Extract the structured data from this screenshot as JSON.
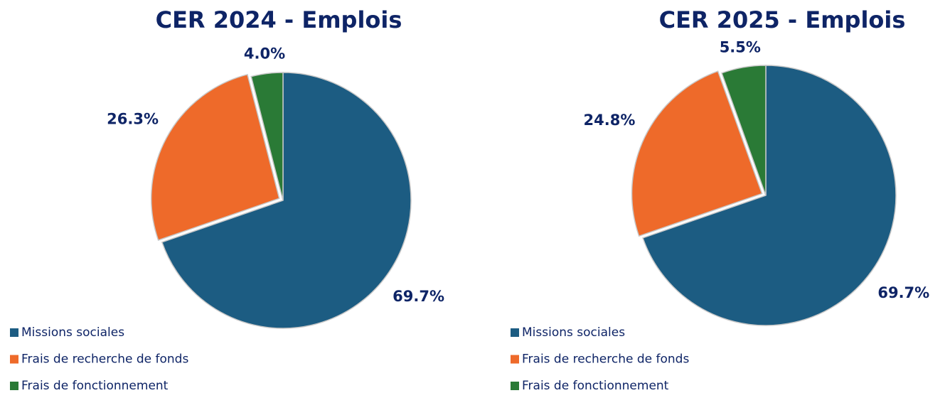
{
  "chart_data": [
    {
      "type": "pie",
      "title": "CER 2024 - Emplois",
      "categories": [
        "Missions sociales",
        "Frais de recherche de fonds",
        "Frais de fonctionnement"
      ],
      "values": [
        69.7,
        26.3,
        4.0
      ],
      "value_labels": [
        "69.7%",
        "26.3%",
        "4.0%"
      ],
      "colors": [
        "#1c5c82",
        "#ee6a2a",
        "#2a7a36"
      ]
    },
    {
      "type": "pie",
      "title": "CER 2025 - Emplois",
      "categories": [
        "Missions sociales",
        "Frais de recherche de fonds",
        "Frais de fonctionnement"
      ],
      "values": [
        69.7,
        24.8,
        5.5
      ],
      "value_labels": [
        "69.7%",
        "24.8%",
        "5.5%"
      ],
      "colors": [
        "#1c5c82",
        "#ee6a2a",
        "#2a7a36"
      ]
    }
  ]
}
